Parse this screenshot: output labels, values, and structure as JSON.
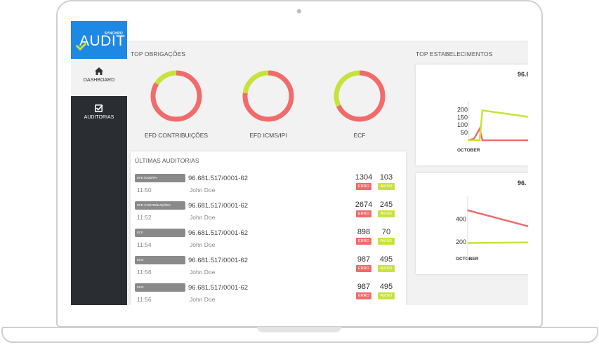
{
  "app": {
    "logo_text": "AUDIT",
    "logo_sub": "SYNCHRO"
  },
  "sidebar": {
    "items": [
      {
        "label": "DASHBOARD",
        "icon": "home-icon",
        "active": true
      },
      {
        "label": "AUDITORIAS",
        "icon": "checkbox-icon",
        "active": false
      }
    ]
  },
  "sections": {
    "top_obrigacoes": "TOP OBRIGAÇÕES",
    "top_estabelecimentos": "TOP ESTABELECIMENTOS",
    "ultimas_auditorias": "ÚLTIMAS AUDITORIAS"
  },
  "donuts": [
    {
      "label": "EFD CONTRIBUIÇÕES",
      "error_fraction": 0.84,
      "warning_fraction": 0.16
    },
    {
      "label": "EFD ICMS/IPI",
      "error_fraction": 0.77,
      "warning_fraction": 0.23
    },
    {
      "label": "ECF",
      "error_fraction": 0.68,
      "warning_fraction": 0.32
    }
  ],
  "colors": {
    "error": "#f26b6b",
    "warning": "#c9e23b",
    "track": "#e6e6e6",
    "brand": "#1e88e5",
    "sidebar": "#2a2d32"
  },
  "badges": {
    "error": "ERRO",
    "warning": "AVISO"
  },
  "audits": [
    {
      "tag": "EFD ICMS/IPI",
      "cnpj": "96.681.517/0001-62",
      "time": "11:50",
      "user": "John Doe",
      "errors": "1304",
      "warnings": "103"
    },
    {
      "tag": "EFD CONTRIBUIÇÕES",
      "cnpj": "96.681.517/0001-62",
      "time": "11:52",
      "user": "John Doe",
      "errors": "2674",
      "warnings": "245"
    },
    {
      "tag": "ECF",
      "cnpj": "96.681.517/0001-62",
      "time": "11:54",
      "user": "John Doe",
      "errors": "898",
      "warnings": "70"
    },
    {
      "tag": "ECD",
      "cnpj": "96.681.517/0001-62",
      "time": "11:56",
      "user": "John Doe",
      "errors": "987",
      "warnings": "495"
    },
    {
      "tag": "ECD",
      "cnpj": "96.681.517/0001-62",
      "time": "11:56",
      "user": "John Doe",
      "errors": "987",
      "warnings": "495"
    }
  ],
  "chart_data": [
    {
      "type": "line",
      "title": "96.6",
      "x_label": "OCTOBER",
      "y_ticks": [
        200,
        150,
        100,
        50
      ],
      "ylim": [
        0,
        220
      ],
      "series": [
        {
          "color": "#f26b6b",
          "values": [
            0,
            10,
            75,
            0,
            0
          ]
        },
        {
          "color": "#c9e23b",
          "values": [
            0,
            0,
            0,
            195,
            150
          ]
        }
      ]
    },
    {
      "type": "line",
      "title": "96.",
      "x_label": "OCTOBER",
      "y_ticks": [
        400,
        200
      ],
      "ylim": [
        0,
        560
      ],
      "series": [
        {
          "color": "#f26b6b",
          "values": [
            480,
            330
          ]
        },
        {
          "color": "#c9e23b",
          "values": [
            190,
            195
          ]
        }
      ]
    }
  ]
}
